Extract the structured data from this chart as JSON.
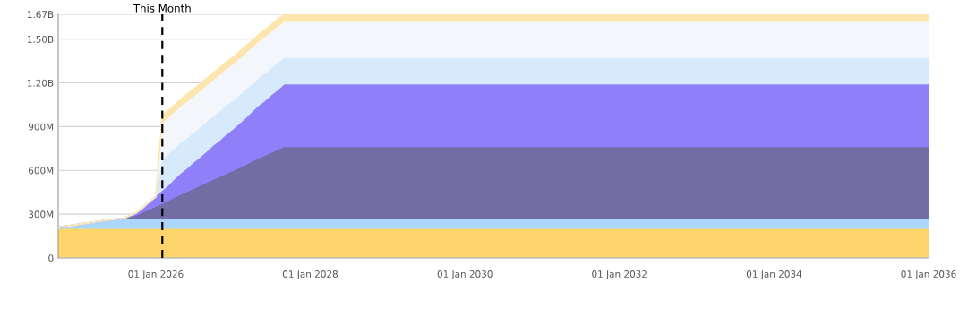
{
  "chart_data": {
    "type": "area",
    "stacked": true,
    "x": [
      "2024-09-27",
      "2024-12",
      "2025-02",
      "2025-04",
      "2025-06",
      "2025-08",
      "2025-10",
      "2025-11",
      "2025-12",
      "2026-01",
      "2026-02",
      "2026-03",
      "2026-04",
      "2026-05",
      "2026-06",
      "2026-07",
      "2026-08",
      "2026-09",
      "2026-10",
      "2026-11",
      "2026-12",
      "2027-01",
      "2027-02",
      "2027-03",
      "2027-04",
      "2027-05",
      "2027-06",
      "2027-07",
      "2027-08",
      "2027-09",
      "2036-01"
    ],
    "series": [
      {
        "color": "#fdd56a",
        "values": [
          200000000,
          200000000,
          200000000,
          200000000,
          200000000,
          200000000,
          200000000,
          200000000,
          200000000,
          200000000,
          200000000,
          200000000,
          200000000,
          200000000,
          200000000,
          200000000,
          200000000,
          200000000,
          200000000,
          200000000,
          200000000,
          200000000,
          200000000,
          200000000,
          200000000,
          200000000,
          200000000,
          200000000,
          200000000,
          200000000,
          200000000
        ]
      },
      {
        "color": "#acd6fb",
        "values": [
          10000000,
          23000000,
          37000000,
          50000000,
          63000000,
          70000000,
          70000000,
          70000000,
          70000000,
          70000000,
          70000000,
          70000000,
          70000000,
          70000000,
          70000000,
          70000000,
          70000000,
          70000000,
          70000000,
          70000000,
          70000000,
          70000000,
          70000000,
          70000000,
          70000000,
          70000000,
          70000000,
          70000000,
          70000000,
          70000000,
          70000000
        ]
      },
      {
        "color": "#746ca4",
        "values": [
          0,
          0,
          0,
          0,
          0,
          0,
          20000000,
          40000000,
          60000000,
          80000000,
          100000000,
          120000000,
          145000000,
          165000000,
          185000000,
          205000000,
          225000000,
          245000000,
          265000000,
          285000000,
          305000000,
          325000000,
          345000000,
          365000000,
          390000000,
          410000000,
          430000000,
          450000000,
          470000000,
          490000000,
          490000000
        ]
      },
      {
        "color": "#8f80fa",
        "values": [
          0,
          0,
          0,
          0,
          0,
          0,
          20000000,
          35000000,
          55000000,
          70000000,
          90000000,
          105000000,
          125000000,
          145000000,
          160000000,
          180000000,
          195000000,
          215000000,
          235000000,
          250000000,
          270000000,
          285000000,
          305000000,
          320000000,
          340000000,
          360000000,
          375000000,
          395000000,
          410000000,
          430000000,
          430000000
        ]
      },
      {
        "color": "#d6eafc",
        "values": [
          0,
          0,
          0,
          0,
          0,
          0,
          0,
          0,
          0,
          0,
          215000000,
          215000000,
          210000000,
          210000000,
          210000000,
          205000000,
          205000000,
          205000000,
          200000000,
          200000000,
          200000000,
          195000000,
          195000000,
          195000000,
          190000000,
          190000000,
          190000000,
          185000000,
          185000000,
          180000000,
          180000000
        ]
      },
      {
        "color": "#f3f6fa",
        "values": [
          0,
          0,
          0,
          0,
          0,
          0,
          0,
          0,
          0,
          0,
          250000000,
          250000000,
          250000000,
          250000000,
          250000000,
          250000000,
          250000000,
          250000000,
          250000000,
          250000000,
          250000000,
          250000000,
          250000000,
          250000000,
          250000000,
          250000000,
          250000000,
          250000000,
          250000000,
          250000000,
          250000000
        ]
      },
      {
        "color": "#fde6ad",
        "values": [
          0,
          0,
          0,
          0,
          0,
          0,
          0,
          0,
          0,
          0,
          50000000,
          50000000,
          50000000,
          50000000,
          50000000,
          50000000,
          50000000,
          50000000,
          50000000,
          50000000,
          50000000,
          50000000,
          50000000,
          50000000,
          50000000,
          50000000,
          50000000,
          50000000,
          50000000,
          50000000,
          50000000
        ]
      }
    ],
    "xlim": [
      "2024-09-27",
      "2036-01-01"
    ],
    "xticks": [
      {
        "value": "2026-01-01",
        "label": "01 Jan 2026"
      },
      {
        "value": "2028-01-01",
        "label": "01 Jan 2028"
      },
      {
        "value": "2030-01-01",
        "label": "01 Jan 2030"
      },
      {
        "value": "2032-01-01",
        "label": "01 Jan 2032"
      },
      {
        "value": "2034-01-01",
        "label": "01 Jan 2034"
      },
      {
        "value": "2036-01-01",
        "label": "01 Jan 2036"
      }
    ],
    "ylim": [
      0,
      1670000000
    ],
    "yticks": [
      0,
      {
        "value": 300000000,
        "label": "300M"
      },
      {
        "value": 600000000,
        "label": "600M"
      },
      {
        "value": 900000000,
        "label": "900M"
      },
      {
        "value": 1200000000,
        "label": "1.20B"
      },
      {
        "value": 1500000000,
        "label": "1.50B"
      },
      {
        "value": 1670000000,
        "label": "1.67B"
      }
    ],
    "grid": "y",
    "ref_lines": [
      {
        "axis": "x",
        "value": "2026-02-01",
        "label": "This Month",
        "color": "#000000",
        "line_style": "dashed"
      }
    ]
  }
}
